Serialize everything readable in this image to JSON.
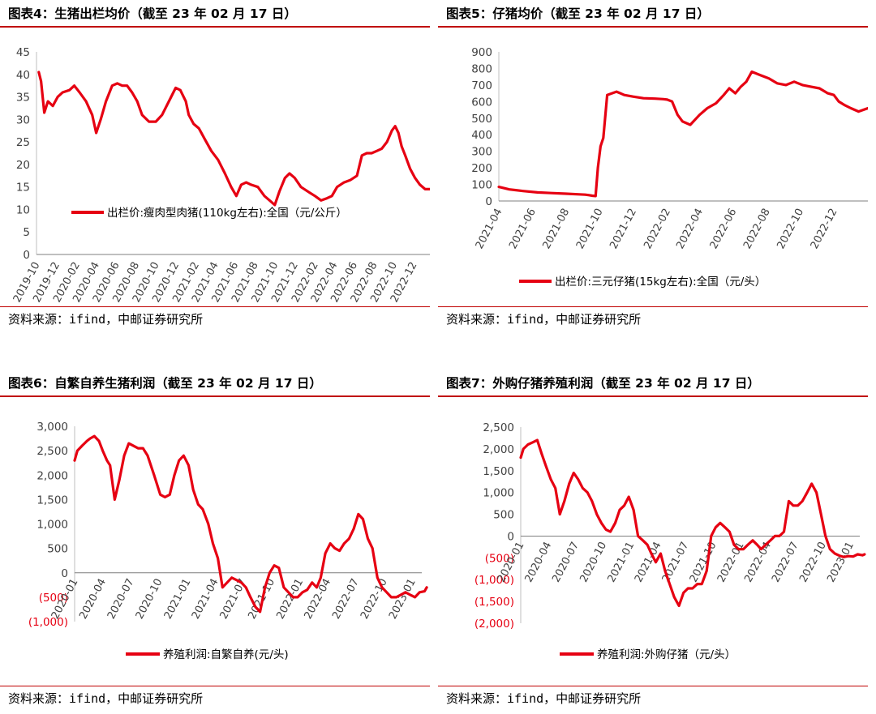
{
  "panels": [
    {
      "id": "p4",
      "title": "图表4：生猪出栏均价（截至 23 年 02 月 17 日）",
      "source": "资料来源：ifind，中邮证券研究所",
      "chart_data": {
        "type": "line",
        "ylim": [
          0,
          45
        ],
        "yticks": [
          "0",
          "5",
          "10",
          "15",
          "20",
          "25",
          "30",
          "35",
          "40",
          "45"
        ],
        "yvals": [
          0,
          5,
          10,
          15,
          20,
          25,
          30,
          35,
          40,
          45
        ],
        "x_start": "2019-10",
        "x_end": "2023-02",
        "xticks": [
          "2019-10",
          "2019-12",
          "2020-02",
          "2020-04",
          "2020-06",
          "2020-08",
          "2020-10",
          "2020-12",
          "2021-02",
          "2021-04",
          "2021-06",
          "2021-08",
          "2021-10",
          "2021-12",
          "2022-02",
          "2022-04",
          "2022-06",
          "2022-08",
          "2022-10",
          "2022-12"
        ],
        "legend_position": "inside-bottom",
        "series": [
          {
            "name": "出栏价:瘦肉型肉猪(110kg左右):全国（元/公斤）",
            "color": "#e60012",
            "x": [
              "2019-10-08",
              "2019-10-15",
              "2019-10-25",
              "2019-11-05",
              "2019-11-20",
              "2019-12-05",
              "2019-12-20",
              "2020-01-10",
              "2020-01-25",
              "2020-02-10",
              "2020-03-01",
              "2020-03-20",
              "2020-04-01",
              "2020-04-15",
              "2020-05-01",
              "2020-05-20",
              "2020-06-05",
              "2020-06-20",
              "2020-07-05",
              "2020-07-20",
              "2020-08-05",
              "2020-08-20",
              "2020-09-10",
              "2020-10-01",
              "2020-10-20",
              "2020-11-10",
              "2020-12-01",
              "2020-12-15",
              "2021-01-01",
              "2021-01-10",
              "2021-01-25",
              "2021-02-10",
              "2021-03-01",
              "2021-03-20",
              "2021-04-10",
              "2021-05-01",
              "2021-05-20",
              "2021-06-05",
              "2021-06-20",
              "2021-07-05",
              "2021-07-20",
              "2021-08-10",
              "2021-08-30",
              "2021-09-15",
              "2021-10-01",
              "2021-10-15",
              "2021-11-01",
              "2021-11-15",
              "2021-12-01",
              "2021-12-20",
              "2022-01-10",
              "2022-02-01",
              "2022-02-20",
              "2022-03-10",
              "2022-03-25",
              "2022-04-10",
              "2022-05-01",
              "2022-05-20",
              "2022-06-10",
              "2022-06-25",
              "2022-07-10",
              "2022-07-25",
              "2022-08-10",
              "2022-08-25",
              "2022-09-10",
              "2022-09-25",
              "2022-10-05",
              "2022-10-15",
              "2022-10-25",
              "2022-11-05",
              "2022-11-20",
              "2022-12-05",
              "2022-12-20",
              "2023-01-05",
              "2023-01-20",
              "2023-02-05",
              "2023-02-17"
            ],
            "y": [
              40.5,
              38.5,
              31.5,
              34,
              33,
              35,
              36,
              36.5,
              37.5,
              36,
              34,
              31,
              27,
              30,
              34,
              37.5,
              38,
              37.5,
              37.5,
              36,
              34,
              31,
              29.5,
              29.5,
              31,
              34,
              37,
              36.5,
              34,
              31,
              29,
              28,
              25.5,
              23,
              21,
              18,
              15,
              13,
              15.5,
              16,
              15.5,
              15,
              13,
              12,
              11,
              14,
              17,
              18,
              17,
              15,
              14,
              13,
              12,
              12.5,
              13,
              15,
              16,
              16.5,
              17.5,
              22,
              22.5,
              22.5,
              23,
              23.5,
              25,
              27.5,
              28.5,
              27,
              24,
              22,
              19,
              17,
              15.5,
              14.5,
              14.5,
              14,
              15
            ]
          }
        ]
      }
    },
    {
      "id": "p5",
      "title": "图表5：仔猪均价（截至 23 年 02 月 17 日）",
      "source": "资料来源：ifind，中邮证券研究所",
      "chart_data": {
        "type": "line",
        "ylim": [
          0,
          900
        ],
        "yticks": [
          "0",
          "100",
          "200",
          "300",
          "400",
          "500",
          "600",
          "700",
          "800",
          "900"
        ],
        "yvals": [
          0,
          100,
          200,
          300,
          400,
          500,
          600,
          700,
          800,
          900
        ],
        "x_start": "2021-04",
        "x_end": "2023-02",
        "xticks": [
          "2021-04",
          "2021-06",
          "2021-08",
          "2021-10",
          "2021-12",
          "2022-02",
          "2022-04",
          "2022-06",
          "2022-08",
          "2022-10",
          "2022-12"
        ],
        "legend_position": "bottom",
        "series": [
          {
            "name": "出栏价:三元仔猪(15kg左右):全国（元/头）",
            "color": "#e60012",
            "x": [
              "2021-04-01",
              "2021-04-20",
              "2021-05-15",
              "2021-06-10",
              "2021-07-05",
              "2021-08-01",
              "2021-08-25",
              "2021-09-05",
              "2021-09-12",
              "2021-09-18",
              "2021-09-24",
              "2021-09-28",
              "2021-10-03",
              "2021-10-08",
              "2021-10-15",
              "2021-11-01",
              "2021-11-15",
              "2021-12-01",
              "2021-12-20",
              "2022-01-10",
              "2022-01-25",
              "2022-02-01",
              "2022-02-10",
              "2022-02-20",
              "2022-03-01",
              "2022-03-15",
              "2022-04-01",
              "2022-04-15",
              "2022-05-01",
              "2022-05-15",
              "2022-05-25",
              "2022-06-05",
              "2022-06-15",
              "2022-06-25",
              "2022-07-05",
              "2022-07-20",
              "2022-08-05",
              "2022-08-20",
              "2022-09-05",
              "2022-09-20",
              "2022-10-05",
              "2022-10-20",
              "2022-11-05",
              "2022-11-20",
              "2022-12-01",
              "2022-12-10",
              "2022-12-20",
              "2023-01-01",
              "2023-01-15",
              "2023-02-01",
              "2023-02-17"
            ],
            "y": [
              85,
              70,
              60,
              52,
              48,
              44,
              40,
              38,
              35,
              32,
              30,
              200,
              330,
              380,
              640,
              660,
              640,
              630,
              620,
              618,
              615,
              612,
              600,
              520,
              480,
              460,
              520,
              560,
              590,
              640,
              680,
              650,
              690,
              720,
              780,
              760,
              740,
              710,
              700,
              720,
              700,
              690,
              680,
              650,
              640,
              600,
              580,
              560,
              540,
              560,
              570
            ]
          }
        ]
      }
    },
    {
      "id": "p6",
      "title": "图表6：自繁自养生猪利润（截至 23 年 02 月 17 日）",
      "source": "资料来源：ifind，中邮证券研究所",
      "chart_data": {
        "type": "line",
        "ylim": [
          -1000,
          3000
        ],
        "yticks": [
          "(1,000)",
          "(500)",
          "0",
          "500",
          "1,000",
          "1,500",
          "2,000",
          "2,500",
          "3,000"
        ],
        "yvals": [
          -1000,
          -500,
          0,
          500,
          1000,
          1500,
          2000,
          2500,
          3000
        ],
        "x_start": "2020-01",
        "x_end": "2023-02",
        "xticks": [
          "2020-01",
          "2020-04",
          "2020-07",
          "2020-10",
          "2021-01",
          "2021-04",
          "2021-07",
          "2021-10",
          "2022-01",
          "2022-04",
          "2022-07",
          "2022-10",
          "2023-01"
        ],
        "legend_position": "bottom",
        "series": [
          {
            "name": "养殖利润:自繁自养(元/头)",
            "color": "#e60012",
            "x": [
              "2020-01-01",
              "2020-01-10",
              "2020-01-25",
              "2020-02-10",
              "2020-02-20",
              "2020-03-05",
              "2020-03-20",
              "2020-04-01",
              "2020-04-15",
              "2020-04-25",
              "2020-05-10",
              "2020-05-25",
              "2020-06-10",
              "2020-06-25",
              "2020-07-10",
              "2020-07-25",
              "2020-08-10",
              "2020-08-25",
              "2020-09-15",
              "2020-10-05",
              "2020-10-20",
              "2020-11-05",
              "2020-11-20",
              "2020-12-05",
              "2020-12-20",
              "2021-01-05",
              "2021-01-20",
              "2021-02-05",
              "2021-02-20",
              "2021-03-10",
              "2021-03-25",
              "2021-04-10",
              "2021-04-25",
              "2021-05-10",
              "2021-05-25",
              "2021-06-10",
              "2021-06-25",
              "2021-07-10",
              "2021-07-25",
              "2021-08-10",
              "2021-08-25",
              "2021-09-10",
              "2021-09-25",
              "2021-10-10",
              "2021-10-25",
              "2021-11-10",
              "2021-11-25",
              "2021-12-10",
              "2021-12-25",
              "2022-01-10",
              "2022-01-25",
              "2022-02-10",
              "2022-02-25",
              "2022-03-10",
              "2022-03-25",
              "2022-04-10",
              "2022-04-25",
              "2022-05-10",
              "2022-05-25",
              "2022-06-10",
              "2022-06-25",
              "2022-07-10",
              "2022-07-25",
              "2022-08-10",
              "2022-08-25",
              "2022-09-10",
              "2022-09-25",
              "2022-10-10",
              "2022-10-25",
              "2022-11-10",
              "2022-11-25",
              "2022-12-10",
              "2022-12-25",
              "2023-01-10",
              "2023-01-25",
              "2023-02-10",
              "2023-02-17"
            ],
            "y": [
              2300,
              2500,
              2600,
              2700,
              2750,
              2800,
              2700,
              2500,
              2300,
              2200,
              1500,
              1900,
              2400,
              2650,
              2600,
              2550,
              2550,
              2400,
              2000,
              1600,
              1550,
              1600,
              2000,
              2300,
              2400,
              2200,
              1700,
              1400,
              1300,
              1000,
              600,
              300,
              -300,
              -200,
              -100,
              -150,
              -200,
              -300,
              -500,
              -700,
              -800,
              -300,
              0,
              150,
              100,
              -300,
              -400,
              -500,
              -500,
              -400,
              -350,
              -200,
              -300,
              -100,
              400,
              600,
              500,
              450,
              600,
              700,
              900,
              1200,
              1100,
              700,
              500,
              -100,
              -300,
              -400,
              -500,
              -500,
              -450,
              -400,
              -450,
              -500,
              -400,
              -380,
              -300
            ]
          }
        ]
      }
    },
    {
      "id": "p7",
      "title": "图表7：外购仔猪养殖利润（截至 23 年 02 月 17 日）",
      "source": "资料来源：ifind，中邮证券研究所",
      "chart_data": {
        "type": "line",
        "ylim": [
          -2000,
          2500
        ],
        "yticks": [
          "(2,000)",
          "(1,500)",
          "(1,000)",
          "(500)",
          "0",
          "500",
          "1,000",
          "1,500",
          "2,000",
          "2,500"
        ],
        "yvals": [
          -2000,
          -1500,
          -1000,
          -500,
          0,
          500,
          1000,
          1500,
          2000,
          2500
        ],
        "x_start": "2020-01",
        "x_end": "2023-02",
        "xticks": [
          "2020-01",
          "2020-04",
          "2020-07",
          "2020-10",
          "2021-01",
          "2021-04",
          "2021-07",
          "2021-10",
          "2022-01",
          "2022-04",
          "2022-07",
          "2022-10",
          "2023-01"
        ],
        "legend_position": "bottom",
        "series": [
          {
            "name": "养殖利润:外购仔猪（元/头）",
            "color": "#e60012",
            "x": [
              "2020-01-01",
              "2020-01-10",
              "2020-01-25",
              "2020-02-10",
              "2020-02-25",
              "2020-03-10",
              "2020-03-25",
              "2020-04-10",
              "2020-04-25",
              "2020-05-10",
              "2020-05-25",
              "2020-06-10",
              "2020-06-25",
              "2020-07-10",
              "2020-07-25",
              "2020-08-10",
              "2020-08-25",
              "2020-09-10",
              "2020-09-25",
              "2020-10-10",
              "2020-10-25",
              "2020-11-10",
              "2020-11-25",
              "2020-12-10",
              "2020-12-25",
              "2021-01-10",
              "2021-01-25",
              "2021-02-10",
              "2021-02-25",
              "2021-03-10",
              "2021-03-25",
              "2021-04-10",
              "2021-04-25",
              "2021-05-10",
              "2021-05-25",
              "2021-06-10",
              "2021-06-25",
              "2021-07-10",
              "2021-07-25",
              "2021-08-10",
              "2021-08-25",
              "2021-09-10",
              "2021-09-25",
              "2021-10-10",
              "2021-10-25",
              "2021-11-10",
              "2021-11-25",
              "2021-12-10",
              "2021-12-25",
              "2022-01-10",
              "2022-01-25",
              "2022-02-10",
              "2022-02-25",
              "2022-03-10",
              "2022-03-25",
              "2022-04-10",
              "2022-04-25",
              "2022-05-10",
              "2022-05-25",
              "2022-06-10",
              "2022-06-25",
              "2022-07-10",
              "2022-07-25",
              "2022-08-10",
              "2022-08-25",
              "2022-09-10",
              "2022-09-25",
              "2022-10-10",
              "2022-10-25",
              "2022-11-10",
              "2022-11-25",
              "2022-12-10",
              "2022-12-25",
              "2023-01-10",
              "2023-01-25",
              "2023-02-10",
              "2023-02-17"
            ],
            "y": [
              1800,
              2000,
              2100,
              2150,
              2200,
              1900,
              1600,
              1300,
              1100,
              500,
              800,
              1200,
              1450,
              1300,
              1100,
              1000,
              800,
              500,
              300,
              150,
              100,
              300,
              600,
              700,
              900,
              600,
              0,
              -100,
              -200,
              -400,
              -600,
              -400,
              -800,
              -1100,
              -1400,
              -1600,
              -1300,
              -1200,
              -1200,
              -1100,
              -1100,
              -800,
              0,
              200,
              300,
              200,
              100,
              -200,
              -300,
              -300,
              -200,
              -100,
              -200,
              -300,
              -200,
              -100,
              0,
              0,
              100,
              800,
              700,
              700,
              800,
              1000,
              1200,
              1000,
              500,
              0,
              -300,
              -400,
              -450,
              -480,
              -460,
              -470,
              -420,
              -440,
              -420
            ]
          }
        ]
      }
    }
  ]
}
